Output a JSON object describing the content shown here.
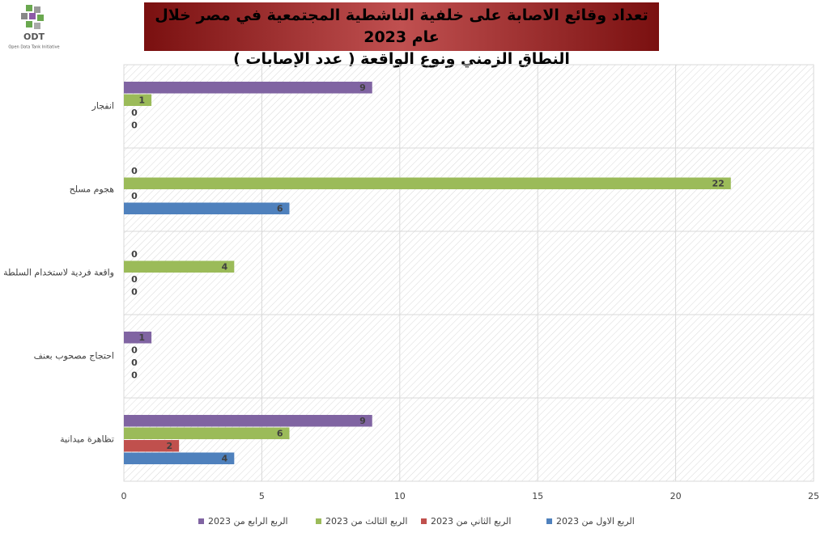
{
  "logo": {
    "name": "ODT",
    "tagline": "Open Data Tank Initiative"
  },
  "chart_data": {
    "type": "hbar",
    "title": "تعداد وقائع الاصابة على خلفية الناشطية المجتمعية في مصر خلال عام 2023",
    "subtitle": "النطاق الزمني ونوع الواقعة ( عدد الإصابات )",
    "categories": [
      "انفجار",
      "هجوم مسلح",
      "واقعة فردية لاستخدام السلطة",
      "احتجاج مصحوب بعنف",
      "تظاهرة ميدانية"
    ],
    "series": [
      {
        "name": "الربع الاول من 2023",
        "color": "#4f81bd",
        "values": [
          0,
          6,
          0,
          0,
          4
        ]
      },
      {
        "name": "الربع الثاني من 2023",
        "color": "#c0504d",
        "values": [
          0,
          0,
          0,
          0,
          2
        ]
      },
      {
        "name": "الربع الثالث من 2023",
        "color": "#9bbb59",
        "values": [
          1,
          22,
          4,
          0,
          6
        ]
      },
      {
        "name": "الربع الرابع من 2023",
        "color": "#8064a2",
        "values": [
          9,
          0,
          0,
          1,
          9
        ]
      }
    ],
    "xlim": [
      0,
      25
    ],
    "xticks": [
      0,
      5,
      10,
      15,
      20,
      25
    ],
    "grid": true,
    "legend": "bottom"
  }
}
